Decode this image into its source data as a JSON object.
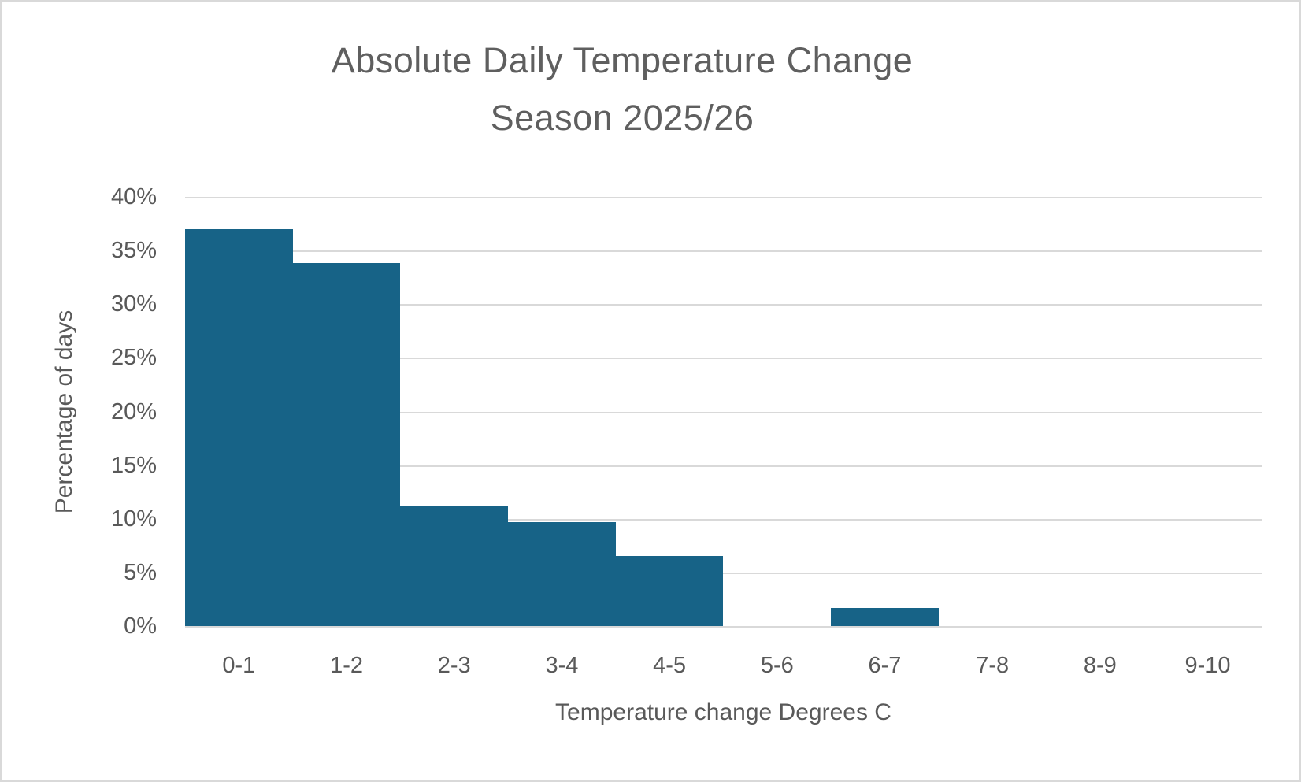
{
  "chart_data": {
    "type": "bar",
    "title": "Absolute Daily Temperature Change",
    "subtitle": "Season 2025/26",
    "categories": [
      "0-1",
      "1-2",
      "2-3",
      "3-4",
      "4-5",
      "5-6",
      "6-7",
      "7-8",
      "8-9",
      "9-10"
    ],
    "values": [
      37,
      33.8,
      11.2,
      9.7,
      6.5,
      0,
      1.7,
      0,
      0,
      0
    ],
    "xlabel": "Temperature change Degrees C",
    "ylabel": "Percentage of days",
    "ylim": [
      0,
      40
    ],
    "ytick_step": 5,
    "yticks": [
      "40%",
      "35%",
      "30%",
      "25%",
      "20%",
      "15%",
      "10%",
      "5%",
      "0%"
    ],
    "grid": "horizontal",
    "legend": "none",
    "gap_width_percent": 0,
    "colors": {
      "bar": "#176387",
      "gridline": "#d9d9d9",
      "axis_text": "#595959",
      "title_text": "#5f5f5f",
      "frame": "#d9d9d9",
      "background": "#ffffff"
    }
  }
}
